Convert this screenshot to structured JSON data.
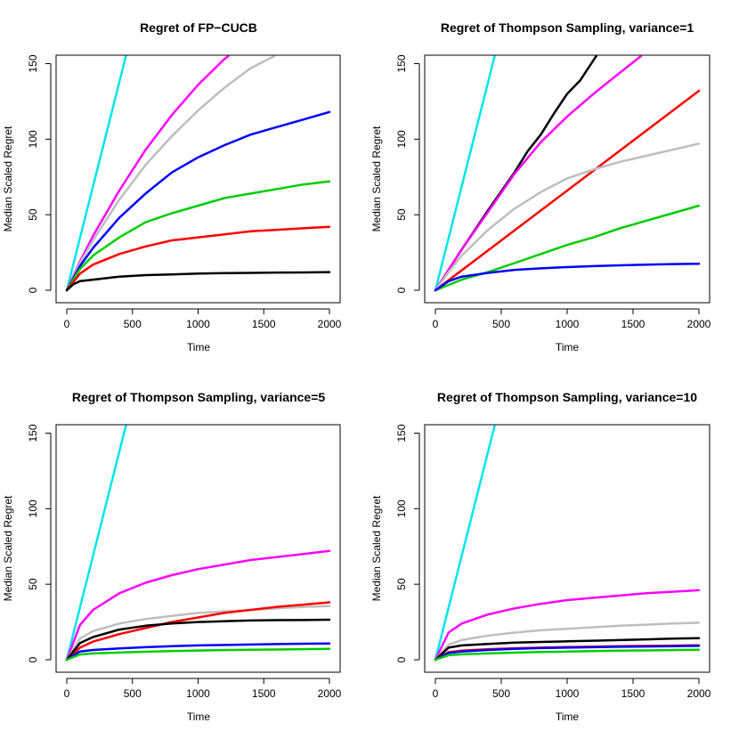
{
  "chart_data": [
    {
      "type": "line",
      "title": "Regret of FP−CUCB",
      "xlabel": "Time",
      "ylabel": "Median Scaled Regret",
      "xlim": [
        0,
        2000
      ],
      "ylim": [
        0,
        155
      ],
      "x_ticks": [
        "0",
        "500",
        "1000",
        "1500",
        "2000"
      ],
      "y_ticks": [
        "0",
        "50",
        "100",
        "150"
      ],
      "series": [
        {
          "name": "cyan",
          "color": "#00e5ee",
          "x": [
            0,
            450
          ],
          "values": [
            0,
            155
          ]
        },
        {
          "name": "magenta",
          "color": "#ff00ff",
          "x": [
            0,
            100,
            200,
            400,
            600,
            800,
            1000,
            1200,
            1230
          ],
          "values": [
            0,
            19,
            36,
            66,
            93,
            116,
            136,
            153,
            155
          ]
        },
        {
          "name": "gray",
          "color": "#bebebe",
          "x": [
            0,
            100,
            200,
            400,
            600,
            800,
            1000,
            1200,
            1400,
            1580
          ],
          "values": [
            0,
            18,
            33,
            60,
            83,
            102,
            119,
            134,
            147,
            155
          ]
        },
        {
          "name": "blue",
          "color": "#0000ff",
          "x": [
            0,
            100,
            200,
            400,
            600,
            800,
            1000,
            1200,
            1400,
            1600,
            1800,
            2000
          ],
          "values": [
            0,
            16,
            28,
            48,
            64,
            78,
            88,
            96,
            103,
            108,
            113,
            118
          ]
        },
        {
          "name": "green",
          "color": "#00cd00",
          "x": [
            0,
            100,
            200,
            400,
            600,
            800,
            1000,
            1200,
            1400,
            1600,
            1800,
            2000
          ],
          "values": [
            0,
            14,
            23,
            35,
            45,
            51,
            56,
            61,
            64,
            67,
            70,
            72
          ]
        },
        {
          "name": "red",
          "color": "#ff0000",
          "x": [
            0,
            100,
            200,
            400,
            600,
            800,
            1000,
            1200,
            1400,
            1600,
            1800,
            2000
          ],
          "values": [
            0,
            11,
            17,
            24,
            29,
            33,
            35,
            37,
            39,
            40,
            41,
            42
          ]
        },
        {
          "name": "black",
          "color": "#000000",
          "x": [
            0,
            50,
            100,
            200,
            400,
            600,
            800,
            1000,
            1200,
            1400,
            1600,
            1800,
            2000
          ],
          "values": [
            0,
            4,
            6,
            7,
            9,
            10,
            10.5,
            11,
            11.3,
            11.5,
            11.7,
            11.8,
            12
          ]
        }
      ]
    },
    {
      "type": "line",
      "title": "Regret of Thompson Sampling, variance=1",
      "xlabel": "Time",
      "ylabel": "Median Scaled Regret",
      "xlim": [
        0,
        2000
      ],
      "ylim": [
        0,
        155
      ],
      "x_ticks": [
        "0",
        "500",
        "1000",
        "1500",
        "2000"
      ],
      "y_ticks": [
        "0",
        "50",
        "100",
        "150"
      ],
      "series": [
        {
          "name": "cyan",
          "color": "#00e5ee",
          "x": [
            0,
            450
          ],
          "values": [
            0,
            155
          ]
        },
        {
          "name": "black",
          "color": "#000000",
          "x": [
            0,
            200,
            400,
            600,
            700,
            800,
            900,
            1000,
            1100,
            1220
          ],
          "values": [
            0,
            27,
            53,
            78,
            92,
            103,
            117,
            130,
            139,
            155
          ]
        },
        {
          "name": "magenta",
          "color": "#ff00ff",
          "x": [
            0,
            200,
            400,
            600,
            800,
            1000,
            1200,
            1400,
            1560
          ],
          "values": [
            0,
            27,
            52,
            77,
            98,
            115,
            130,
            144,
            155
          ]
        },
        {
          "name": "red",
          "color": "#ff0000",
          "x": [
            0,
            2000
          ],
          "values": [
            0,
            132
          ]
        },
        {
          "name": "gray",
          "color": "#bebebe",
          "x": [
            0,
            100,
            200,
            400,
            600,
            800,
            1000,
            1200,
            1400,
            1600,
            1800,
            2000
          ],
          "values": [
            0,
            12,
            23,
            40,
            54,
            65,
            74,
            80,
            85,
            89,
            93,
            97
          ]
        },
        {
          "name": "green",
          "color": "#00cd00",
          "x": [
            0,
            200,
            400,
            600,
            800,
            1000,
            1200,
            1400,
            1600,
            1800,
            2000
          ],
          "values": [
            0,
            7,
            12,
            18,
            24,
            30,
            35,
            41,
            46,
            51,
            56
          ]
        },
        {
          "name": "blue",
          "color": "#0000ff",
          "x": [
            0,
            100,
            200,
            400,
            600,
            800,
            1000,
            1200,
            1400,
            1600,
            1800,
            2000
          ],
          "values": [
            0,
            6,
            9,
            11.5,
            13.5,
            14.5,
            15.3,
            16,
            16.5,
            17,
            17.3,
            17.5
          ]
        }
      ]
    },
    {
      "type": "line",
      "title": "Regret of Thompson Sampling, variance=5",
      "xlabel": "Time",
      "ylabel": "Median Scaled Regret",
      "xlim": [
        0,
        2000
      ],
      "ylim": [
        0,
        155
      ],
      "x_ticks": [
        "0",
        "500",
        "1000",
        "1500",
        "2000"
      ],
      "y_ticks": [
        "0",
        "50",
        "100",
        "150"
      ],
      "series": [
        {
          "name": "cyan",
          "color": "#00e5ee",
          "x": [
            0,
            450
          ],
          "values": [
            0,
            155
          ]
        },
        {
          "name": "magenta",
          "color": "#ff00ff",
          "x": [
            0,
            100,
            200,
            400,
            600,
            800,
            1000,
            1200,
            1400,
            1600,
            1800,
            2000
          ],
          "values": [
            0,
            23,
            33,
            44,
            51,
            56,
            60,
            63,
            66,
            68,
            70,
            72
          ]
        },
        {
          "name": "gray",
          "color": "#bebebe",
          "x": [
            0,
            100,
            200,
            400,
            600,
            800,
            1000,
            1200,
            1400,
            1600,
            1800,
            2000
          ],
          "values": [
            0,
            14,
            19,
            24,
            27,
            29,
            31,
            32,
            33,
            34,
            35,
            35.5
          ]
        },
        {
          "name": "red",
          "color": "#ff0000",
          "x": [
            0,
            100,
            200,
            400,
            600,
            800,
            1000,
            1200,
            1400,
            1600,
            1800,
            2000
          ],
          "values": [
            0,
            8,
            12,
            17,
            21,
            25,
            28,
            31,
            33,
            35,
            36.5,
            38
          ]
        },
        {
          "name": "black",
          "color": "#000000",
          "x": [
            0,
            100,
            200,
            400,
            600,
            800,
            1000,
            1200,
            1400,
            1600,
            1800,
            2000
          ],
          "values": [
            0,
            11,
            15,
            20,
            22.5,
            24,
            25,
            25.5,
            26,
            26.2,
            26.3,
            26.5
          ]
        },
        {
          "name": "blue",
          "color": "#0000ff",
          "x": [
            0,
            100,
            200,
            400,
            600,
            800,
            1000,
            1200,
            1400,
            1600,
            1800,
            2000
          ],
          "values": [
            0,
            5.5,
            6.5,
            7.5,
            8.3,
            9,
            9.5,
            9.8,
            10.1,
            10.4,
            10.6,
            10.8
          ]
        },
        {
          "name": "green",
          "color": "#00cd00",
          "x": [
            0,
            100,
            200,
            400,
            600,
            800,
            1000,
            1200,
            1400,
            1600,
            1800,
            2000
          ],
          "values": [
            0,
            3.5,
            4.2,
            4.8,
            5.3,
            5.8,
            6.1,
            6.4,
            6.6,
            6.8,
            7,
            7.2
          ]
        }
      ]
    },
    {
      "type": "line",
      "title": "Regret of Thompson Sampling, variance=10",
      "xlabel": "Time",
      "ylabel": "Median Scaled Regret",
      "xlim": [
        0,
        2000
      ],
      "ylim": [
        0,
        155
      ],
      "x_ticks": [
        "0",
        "500",
        "1000",
        "1500",
        "2000"
      ],
      "y_ticks": [
        "0",
        "50",
        "100",
        "150"
      ],
      "series": [
        {
          "name": "cyan",
          "color": "#00e5ee",
          "x": [
            0,
            450
          ],
          "values": [
            0,
            155
          ]
        },
        {
          "name": "magenta",
          "color": "#ff00ff",
          "x": [
            0,
            100,
            200,
            400,
            600,
            800,
            1000,
            1200,
            1400,
            1600,
            1800,
            2000
          ],
          "values": [
            0,
            18,
            24,
            30,
            34,
            37,
            39.5,
            41,
            42.5,
            44,
            45,
            46
          ]
        },
        {
          "name": "gray",
          "color": "#bebebe",
          "x": [
            0,
            100,
            200,
            400,
            600,
            800,
            1000,
            1200,
            1400,
            1600,
            1800,
            2000
          ],
          "values": [
            0,
            10,
            13,
            16,
            18,
            19.5,
            20.5,
            21.5,
            22.5,
            23.2,
            24,
            24.5
          ]
        },
        {
          "name": "black",
          "color": "#000000",
          "x": [
            0,
            100,
            200,
            400,
            600,
            800,
            1000,
            1200,
            1400,
            1600,
            1800,
            2000
          ],
          "values": [
            0,
            8,
            9.5,
            10.5,
            11.3,
            11.8,
            12.2,
            12.6,
            13,
            13.5,
            14,
            14.3
          ]
        },
        {
          "name": "red",
          "color": "#ff0000",
          "x": [
            0,
            100,
            200,
            400,
            600,
            800,
            1000,
            1200,
            1400,
            1600,
            1800,
            2000
          ],
          "values": [
            0,
            5,
            6,
            7,
            7.6,
            8,
            8.4,
            8.7,
            9,
            9.2,
            9.4,
            9.6
          ]
        },
        {
          "name": "blue",
          "color": "#0000ff",
          "x": [
            0,
            100,
            200,
            400,
            600,
            800,
            1000,
            1200,
            1400,
            1600,
            1800,
            2000
          ],
          "values": [
            0,
            4.5,
            5.5,
            6.5,
            7.2,
            7.7,
            8,
            8.3,
            8.6,
            8.8,
            9,
            9.2
          ]
        },
        {
          "name": "green",
          "color": "#00cd00",
          "x": [
            0,
            100,
            200,
            400,
            600,
            800,
            1000,
            1200,
            1400,
            1600,
            1800,
            2000
          ],
          "values": [
            0,
            3,
            3.6,
            4.2,
            4.7,
            5.1,
            5.4,
            5.7,
            6,
            6.2,
            6.4,
            6.6
          ]
        }
      ]
    }
  ]
}
